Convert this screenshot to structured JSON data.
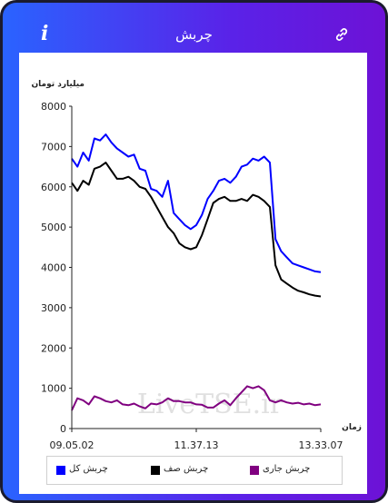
{
  "header": {
    "title": "چربش",
    "info_icon": "info-icon",
    "link_icon": "link-icon"
  },
  "watermark": "LiveTSE.ir",
  "chart_data": {
    "type": "line",
    "ylabel": "میلیارد تومان",
    "xlabel": "زمان",
    "ylim": [
      0,
      8000
    ],
    "yticks": [
      0,
      1000,
      2000,
      3000,
      4000,
      5000,
      6000,
      7000,
      8000
    ],
    "xticks": [
      "09.05.02",
      "11.37.13",
      "13.33.07"
    ],
    "legend_position": "bottom",
    "series": [
      {
        "name": "چربش کل",
        "color": "#0000ff",
        "values": [
          6700,
          6500,
          6850,
          6650,
          7200,
          7150,
          7300,
          7100,
          6950,
          6850,
          6750,
          6800,
          6450,
          6400,
          5950,
          5900,
          5750,
          6150,
          5350,
          5200,
          5050,
          4950,
          5050,
          5300,
          5700,
          5900,
          6150,
          6200,
          6100,
          6250,
          6500,
          6550,
          6700,
          6650,
          6750,
          6600,
          4700,
          4400,
          4250,
          4100,
          4050,
          4000,
          3950,
          3900,
          3880
        ]
      },
      {
        "name": "چربش صف",
        "color": "#000000",
        "values": [
          6100,
          5900,
          6150,
          6050,
          6450,
          6500,
          6600,
          6400,
          6200,
          6200,
          6250,
          6150,
          6000,
          5950,
          5750,
          5500,
          5250,
          5000,
          4850,
          4600,
          4500,
          4450,
          4500,
          4800,
          5200,
          5600,
          5700,
          5750,
          5650,
          5650,
          5700,
          5650,
          5800,
          5750,
          5650,
          5500,
          4050,
          3700,
          3600,
          3500,
          3420,
          3380,
          3330,
          3300,
          3280
        ]
      },
      {
        "name": "چربش جاری",
        "color": "#800080",
        "values": [
          450,
          750,
          700,
          600,
          800,
          750,
          680,
          650,
          700,
          600,
          580,
          620,
          550,
          500,
          620,
          600,
          650,
          750,
          680,
          680,
          650,
          650,
          600,
          590,
          520,
          520,
          620,
          700,
          580,
          750,
          900,
          1050,
          1000,
          1050,
          950,
          700,
          650,
          700,
          650,
          620,
          640,
          600,
          620,
          580,
          600
        ]
      }
    ]
  }
}
